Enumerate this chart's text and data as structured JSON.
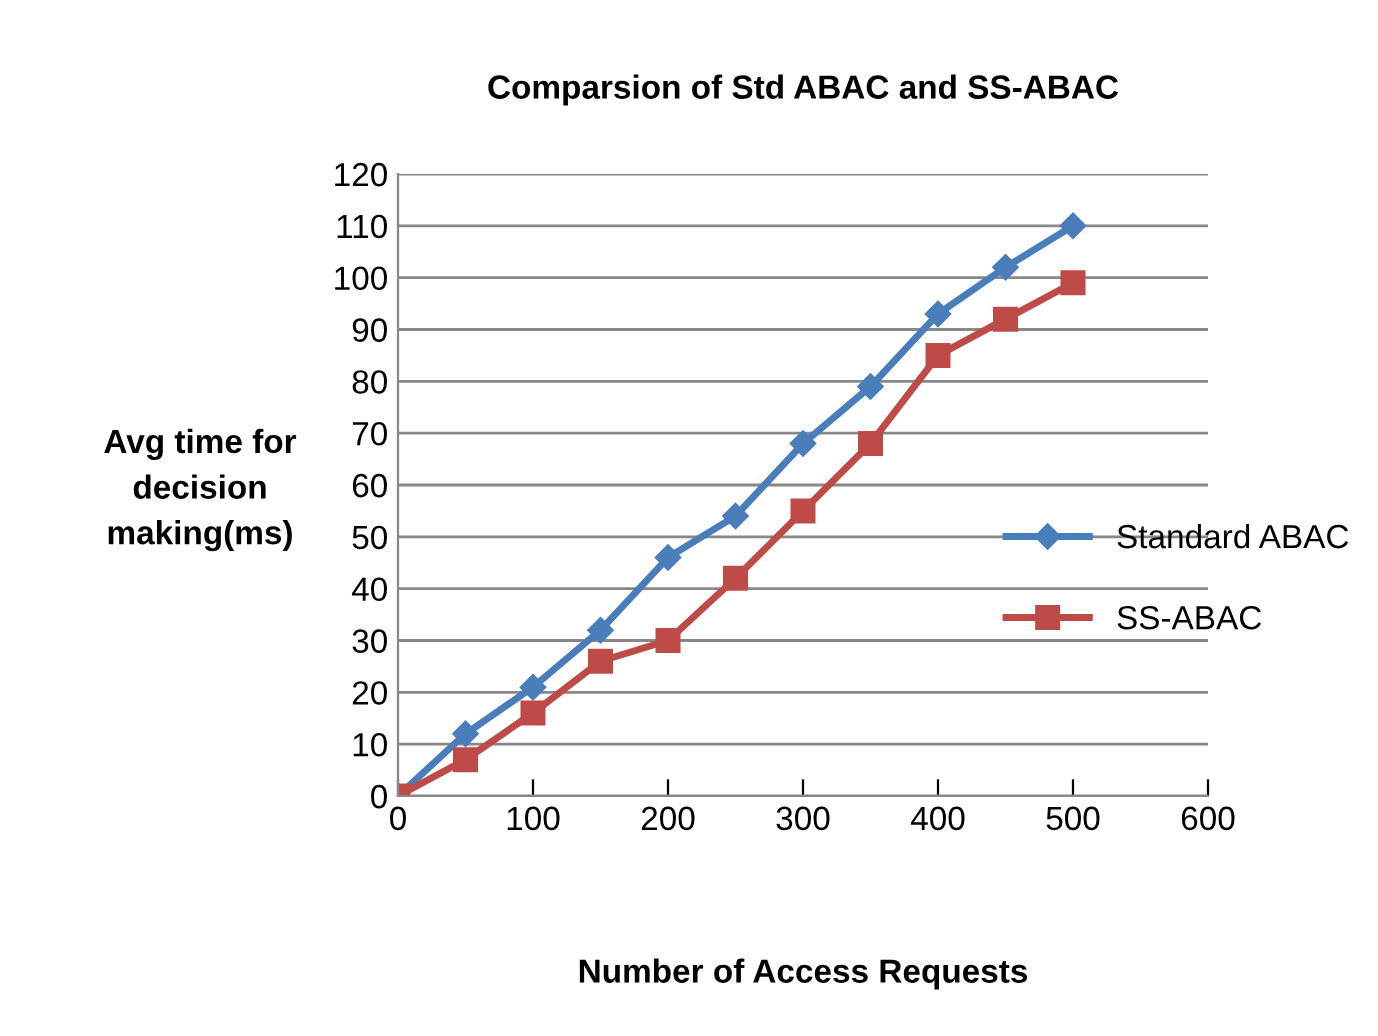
{
  "chart_data": {
    "type": "line",
    "title": "Comparsion of Std ABAC and SS-ABAC",
    "xlabel": "Number of Access Requests",
    "ylabel": "Avg time for\ndecision\nmaking(ms)",
    "x": [
      0,
      50,
      100,
      150,
      200,
      250,
      300,
      350,
      400,
      450,
      500
    ],
    "series": [
      {
        "name": "Standard ABAC",
        "color": "#4a7ebb",
        "marker": "diamond",
        "values": [
          0,
          12,
          21,
          32,
          46,
          54,
          68,
          79,
          93,
          102,
          110
        ]
      },
      {
        "name": "SS-ABAC",
        "color": "#be4b48",
        "marker": "square",
        "values": [
          0,
          7,
          16,
          26,
          30,
          42,
          55,
          68,
          85,
          92,
          99
        ]
      }
    ],
    "xlim": [
      0,
      600
    ],
    "xticks": [
      0,
      100,
      200,
      300,
      400,
      500,
      600
    ],
    "ylim": [
      0,
      120
    ],
    "yticks": [
      0,
      10,
      20,
      30,
      40,
      50,
      60,
      70,
      80,
      90,
      100,
      110,
      120
    ],
    "grid": "y",
    "legend": "right",
    "line_style": "solid"
  }
}
